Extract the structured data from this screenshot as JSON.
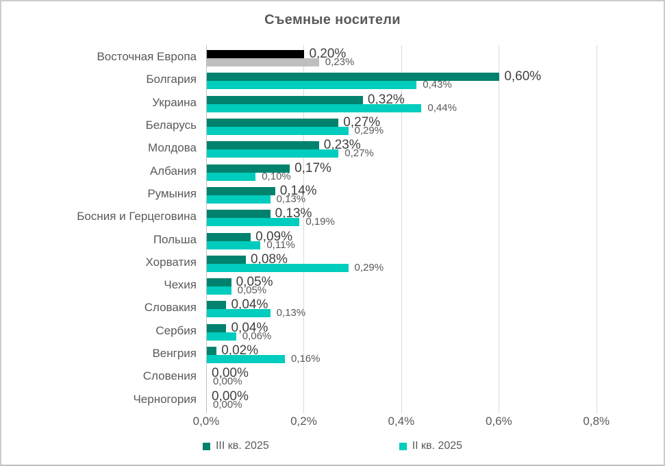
{
  "title": "Съемные носители",
  "chart_data": {
    "type": "bar",
    "orientation": "horizontal",
    "title": "Съемные носители",
    "categories": [
      "Восточная Европа",
      "Болгария",
      "Украина",
      "Беларусь",
      "Молдова",
      "Албания",
      "Румыния",
      "Босния и Герцеговина",
      "Польша",
      "Хорватия",
      "Чехия",
      "Словакия",
      "Сербия",
      "Венгрия",
      "Словения",
      "Черногория"
    ],
    "series": [
      {
        "name": "III кв. 2025",
        "color": "#00826E",
        "label_color": "#3F3F3F",
        "values": [
          0.2,
          0.6,
          0.32,
          0.27,
          0.23,
          0.17,
          0.14,
          0.13,
          0.09,
          0.08,
          0.05,
          0.04,
          0.04,
          0.02,
          0.0,
          0.0
        ],
        "labels": [
          "0,20%",
          "0,60%",
          "0,32%",
          "0,27%",
          "0,23%",
          "0,17%",
          "0,14%",
          "0,13%",
          "0,09%",
          "0,08%",
          "0,05%",
          "0,04%",
          "0,04%",
          "0,02%",
          "0,00%",
          "0,00%"
        ]
      },
      {
        "name": "II кв. 2025",
        "color": "#00CDBD",
        "label_color": "#595959",
        "values": [
          0.23,
          0.43,
          0.44,
          0.29,
          0.27,
          0.1,
          0.13,
          0.19,
          0.11,
          0.29,
          0.05,
          0.13,
          0.06,
          0.16,
          0.0,
          0.0
        ],
        "labels": [
          "0,23%",
          "0,43%",
          "0,44%",
          "0,29%",
          "0,27%",
          "0,10%",
          "0,13%",
          "0,19%",
          "0,11%",
          "0,29%",
          "0,05%",
          "0,13%",
          "0,06%",
          "0,16%",
          "0,00%",
          "0,00%"
        ]
      }
    ],
    "highlight_row": {
      "index": 0,
      "series_colors": [
        "#000000",
        "#BFBFBF"
      ]
    },
    "xlim": [
      0,
      0.9
    ],
    "x_ticks": [
      {
        "value": 0.0,
        "label": "0,0%"
      },
      {
        "value": 0.2,
        "label": "0,2%"
      },
      {
        "value": 0.4,
        "label": "0,4%"
      },
      {
        "value": 0.6,
        "label": "0,6%"
      },
      {
        "value": 0.8,
        "label": "0,8%"
      }
    ],
    "grid": true,
    "legend_position": "bottom"
  },
  "colors": {
    "grid": "#D9D9D9",
    "axis": "#BFBFBF",
    "text": "#595959",
    "frame_border": "#CCCCCC",
    "background": "#FFFFFF"
  }
}
